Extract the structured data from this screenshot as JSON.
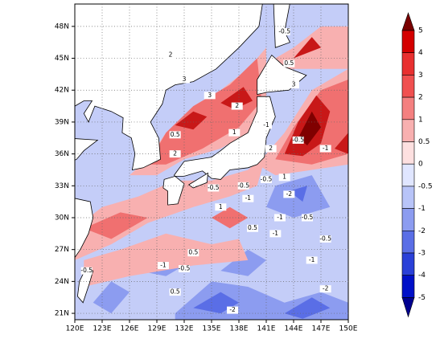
{
  "map": {
    "lon_labels": [
      "120E",
      "123E",
      "126E",
      "129E",
      "132E",
      "135E",
      "138E",
      "141E",
      "144E",
      "147E",
      "150E"
    ],
    "lat_labels": [
      "21N",
      "24N",
      "27N",
      "30N",
      "33N",
      "36N",
      "39N",
      "42N",
      "45N",
      "48N"
    ],
    "colorbar_labels": [
      "5",
      "4",
      "3",
      "2",
      "1",
      "0.5",
      "0",
      "-0.5",
      "-1",
      "-2",
      "-3",
      "-4",
      "-5"
    ],
    "contour_labels": [
      "2",
      "3",
      "3",
      "2",
      "0.5",
      "1",
      "2",
      "3",
      "0.5",
      "-0.5",
      "-1",
      "2",
      "-0.5",
      "-1",
      "-0.5",
      "1",
      "-2",
      "-0.5",
      "-1",
      "-0.5",
      "-1",
      "0.5",
      "-1",
      "-2",
      "0.5",
      "-0.5",
      "-1",
      "-0.5",
      "-2",
      "0.5",
      "-0.5",
      "-0.5",
      "1",
      "-1"
    ]
  }
}
